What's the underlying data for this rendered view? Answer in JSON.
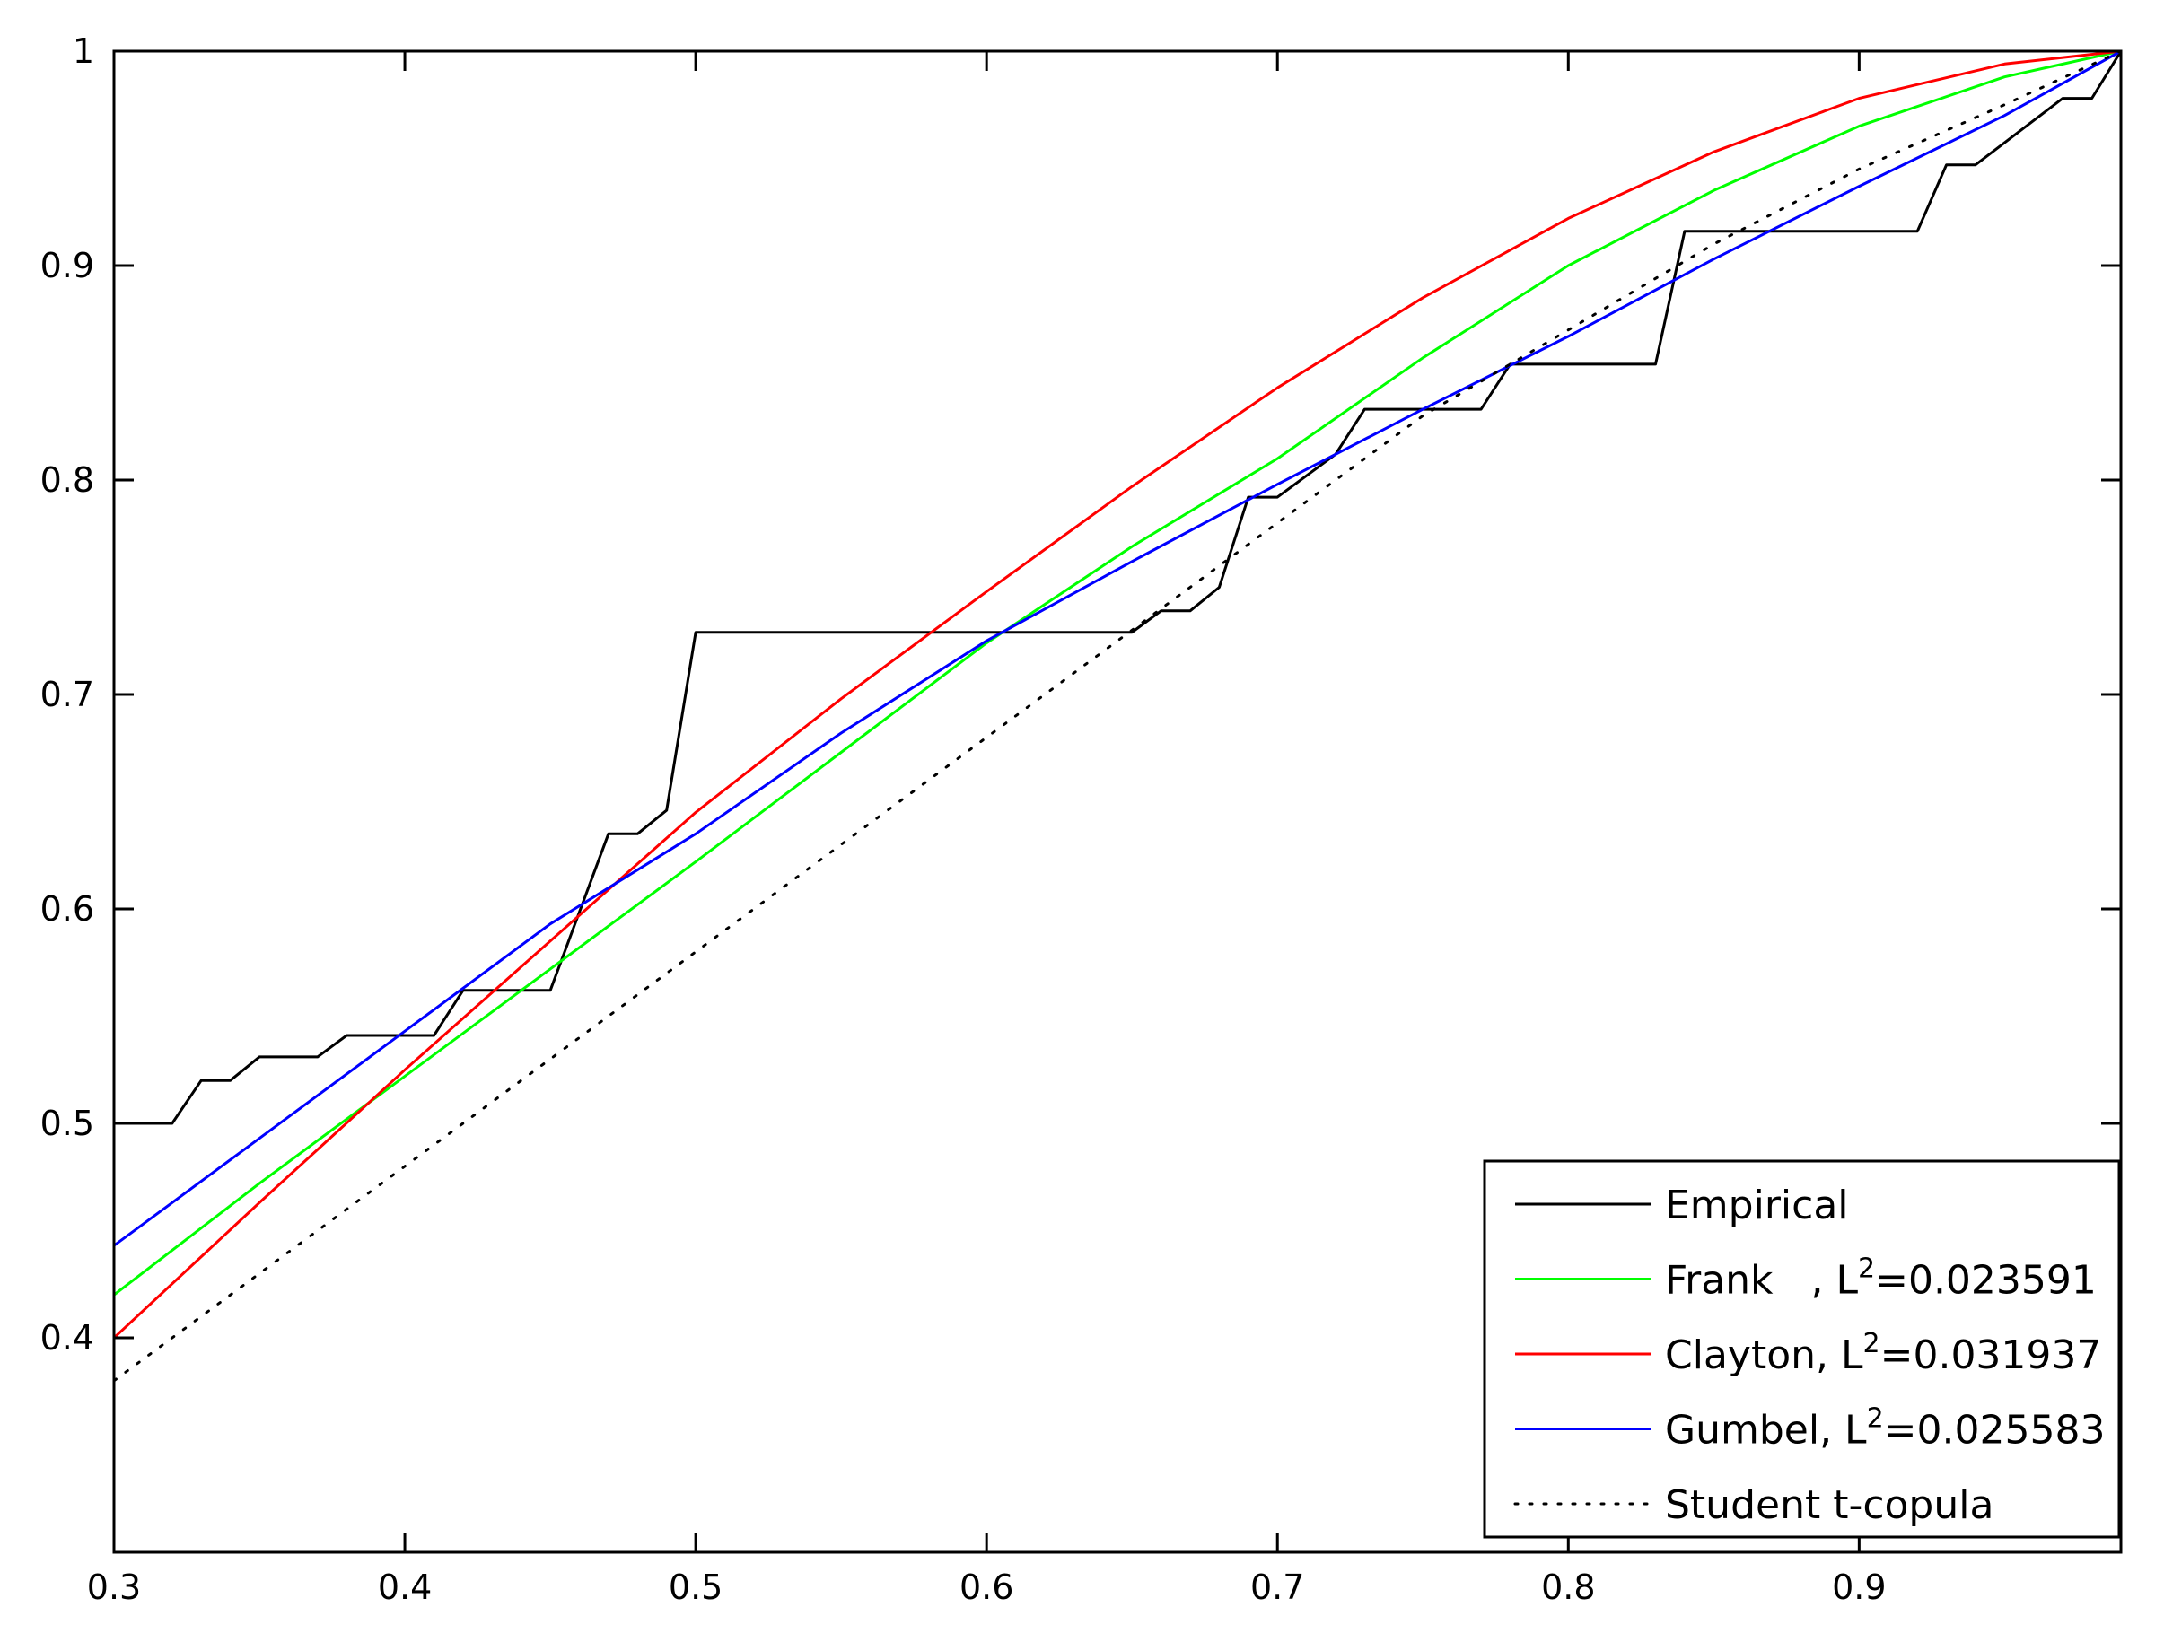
{
  "chart_data": {
    "type": "line",
    "title": "",
    "xlabel": "",
    "ylabel": "",
    "xlim": [
      0.3,
      0.99
    ],
    "ylim": [
      0.3,
      1.0
    ],
    "xticks": [
      "0.3",
      "0.4",
      "0.5",
      "0.6",
      "0.7",
      "0.8",
      "0.9"
    ],
    "yticks": [
      "0.4",
      "0.5",
      "0.6",
      "0.7",
      "0.8",
      "0.9",
      "1"
    ],
    "grid": false,
    "legend_position": "bottom-right",
    "series": [
      {
        "name": "Empirical",
        "legend_text": "Empirical",
        "color": "#000000",
        "style": "solid",
        "step": true,
        "x": [
          0.3,
          0.32,
          0.33,
          0.34,
          0.35,
          0.37,
          0.38,
          0.41,
          0.42,
          0.45,
          0.47,
          0.48,
          0.49,
          0.5,
          0.65,
          0.66,
          0.67,
          0.68,
          0.69,
          0.7,
          0.72,
          0.73,
          0.77,
          0.78,
          0.83,
          0.84,
          0.92,
          0.93,
          0.94,
          0.97,
          0.98,
          0.99
        ],
        "y": [
          0.5,
          0.5,
          0.52,
          0.52,
          0.531,
          0.531,
          0.541,
          0.541,
          0.562,
          0.562,
          0.635,
          0.635,
          0.646,
          0.729,
          0.729,
          0.739,
          0.739,
          0.75,
          0.792,
          0.792,
          0.812,
          0.833,
          0.833,
          0.854,
          0.854,
          0.916,
          0.916,
          0.947,
          0.947,
          0.978,
          0.978,
          1.0
        ]
      },
      {
        "name": "Frank",
        "legend_prefix": "Frank   , L",
        "legend_value": "=0.023591",
        "color": "#00ff00",
        "style": "solid",
        "x": [
          0.3,
          0.35,
          0.4,
          0.45,
          0.5,
          0.55,
          0.6,
          0.65,
          0.7,
          0.75,
          0.8,
          0.85,
          0.9,
          0.95,
          0.99
        ],
        "y": [
          0.42,
          0.472,
          0.522,
          0.572,
          0.622,
          0.673,
          0.724,
          0.769,
          0.81,
          0.857,
          0.9,
          0.935,
          0.965,
          0.988,
          1.0
        ]
      },
      {
        "name": "Clayton",
        "legend_prefix": "Clayton, L",
        "legend_value": "=0.031937",
        "color": "#ff0000",
        "style": "solid",
        "x": [
          0.3,
          0.35,
          0.4,
          0.45,
          0.5,
          0.55,
          0.6,
          0.65,
          0.7,
          0.75,
          0.8,
          0.85,
          0.9,
          0.95,
          0.99
        ],
        "y": [
          0.4,
          0.463,
          0.525,
          0.585,
          0.645,
          0.698,
          0.748,
          0.797,
          0.843,
          0.885,
          0.922,
          0.953,
          0.978,
          0.994,
          1.0
        ]
      },
      {
        "name": "Gumbel",
        "legend_prefix": "Gumbel, L",
        "legend_value": "=0.025583",
        "color": "#0000ff",
        "style": "solid",
        "x": [
          0.3,
          0.35,
          0.4,
          0.45,
          0.5,
          0.55,
          0.6,
          0.65,
          0.7,
          0.75,
          0.8,
          0.85,
          0.9,
          0.95,
          0.99
        ],
        "y": [
          0.443,
          0.493,
          0.543,
          0.593,
          0.635,
          0.682,
          0.725,
          0.762,
          0.798,
          0.833,
          0.867,
          0.903,
          0.937,
          0.97,
          1.0
        ]
      },
      {
        "name": "Student t-copula",
        "legend_text": "Student t-copula",
        "color": "#000000",
        "style": "dotted",
        "x": [
          0.3,
          0.35,
          0.4,
          0.45,
          0.5,
          0.55,
          0.6,
          0.65,
          0.7,
          0.75,
          0.8,
          0.85,
          0.9,
          0.95,
          0.99
        ],
        "y": [
          0.38,
          0.43,
          0.48,
          0.53,
          0.58,
          0.63,
          0.68,
          0.73,
          0.78,
          0.83,
          0.87,
          0.91,
          0.945,
          0.975,
          1.0
        ]
      }
    ]
  }
}
